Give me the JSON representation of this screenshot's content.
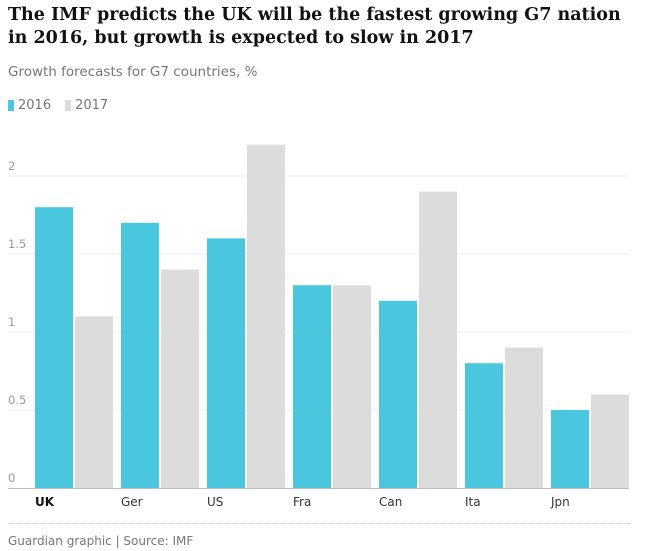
{
  "headline": {
    "bold": "The IMF predicts the UK will be the fastest growing G7 nation in 2016",
    "rest": ", but growth is expected to slow in 2017"
  },
  "subtitle": "Growth forecasts for G7 countries, %",
  "legend": [
    {
      "label": "2016",
      "color": "#4bc6df"
    },
    {
      "label": "2017",
      "color": "#dcdcdc"
    }
  ],
  "footer": "Guardian graphic | Source: IMF",
  "chart_data": {
    "type": "bar",
    "categories": [
      "UK",
      "Ger",
      "US",
      "Fra",
      "Can",
      "Ita",
      "Jpn"
    ],
    "highlight_category": "UK",
    "series": [
      {
        "name": "2016",
        "color": "#4bc6df",
        "values": [
          1.8,
          1.7,
          1.6,
          1.3,
          1.2,
          0.8,
          0.5
        ]
      },
      {
        "name": "2017",
        "color": "#dcdcdc",
        "values": [
          1.1,
          1.4,
          2.2,
          1.3,
          1.9,
          0.9,
          0.6
        ]
      }
    ],
    "yticks": [
      "0",
      "0.5",
      "1",
      "1.5",
      "2"
    ],
    "ylim": [
      0,
      2.2
    ],
    "grid": true,
    "legend_position": "top-left",
    "title": "The IMF predicts the UK will be the fastest growing G7 nation in 2016, but growth is expected to slow in 2017",
    "subtitle": "Growth forecasts for G7 countries, %",
    "xlabel": "",
    "ylabel": ""
  }
}
